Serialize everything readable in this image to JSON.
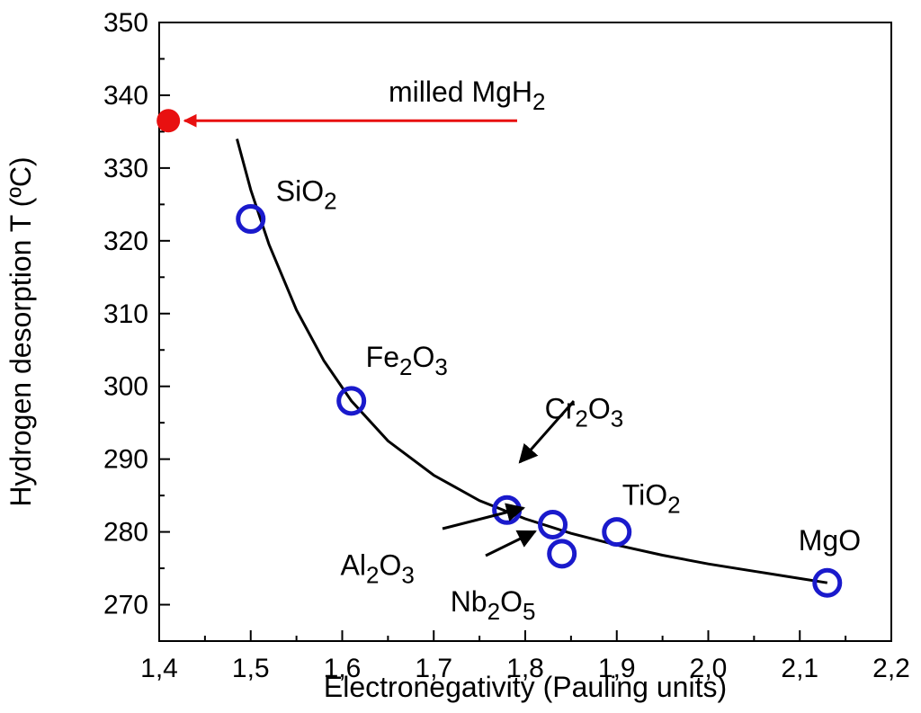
{
  "chart_data": {
    "type": "scatter",
    "xlabel": "Electronegativity (Pauling units)",
    "ylabel": "Hydrogen desorption T (ºC)",
    "xlim": [
      1.4,
      2.2
    ],
    "ylim": [
      265,
      350
    ],
    "x_ticks": [
      1.4,
      1.5,
      1.6,
      1.7,
      1.8,
      1.9,
      2.0,
      2.1,
      2.2
    ],
    "x_tick_labels": [
      "1,4",
      "1,5",
      "1,6",
      "1,7",
      "1,8",
      "1,9",
      "2,0",
      "2,1",
      "2,2"
    ],
    "y_ticks": [
      270,
      280,
      290,
      300,
      310,
      320,
      330,
      340,
      350
    ],
    "y_tick_labels": [
      "270",
      "280",
      "290",
      "300",
      "310",
      "320",
      "330",
      "340",
      "350"
    ],
    "grid": false,
    "marker_color": "#1a1acc",
    "reference_color": "#e81010",
    "curve_color": "#000000",
    "points": [
      {
        "x": 1.5,
        "y": 323,
        "label": [
          {
            "t": "SiO"
          },
          {
            "t": "2",
            "sub": true
          }
        ]
      },
      {
        "x": 1.61,
        "y": 298,
        "label": [
          {
            "t": "Fe"
          },
          {
            "t": "2",
            "sub": true
          },
          {
            "t": "O"
          },
          {
            "t": "3",
            "sub": true
          }
        ]
      },
      {
        "x": 1.78,
        "y": 283,
        "label": [
          {
            "t": "Cr"
          },
          {
            "t": "2",
            "sub": true
          },
          {
            "t": "O"
          },
          {
            "t": "3",
            "sub": true
          }
        ]
      },
      {
        "x": 1.83,
        "y": 281,
        "label": [
          {
            "t": "Al"
          },
          {
            "t": "2",
            "sub": true
          },
          {
            "t": "O"
          },
          {
            "t": "3",
            "sub": true
          }
        ]
      },
      {
        "x": 1.84,
        "y": 277,
        "label": [
          {
            "t": "Nb"
          },
          {
            "t": "2",
            "sub": true
          },
          {
            "t": "O"
          },
          {
            "t": "5",
            "sub": true
          }
        ]
      },
      {
        "x": 1.9,
        "y": 280,
        "label": [
          {
            "t": "TiO"
          },
          {
            "t": "2",
            "sub": true
          }
        ]
      },
      {
        "x": 2.13,
        "y": 273,
        "label": [
          {
            "t": "MgO"
          }
        ]
      }
    ],
    "reference": {
      "x": 1.41,
      "y": 336.5,
      "label": [
        {
          "t": "milled MgH"
        },
        {
          "t": "2",
          "sub": true
        }
      ]
    },
    "fit_curve": {
      "x": [
        1.485,
        1.5,
        1.52,
        1.55,
        1.58,
        1.61,
        1.65,
        1.7,
        1.75,
        1.8,
        1.85,
        1.9,
        1.95,
        2.0,
        2.05,
        2.1,
        2.13
      ],
      "y": [
        334,
        327,
        319.5,
        310.5,
        303.5,
        298,
        292.5,
        287.8,
        284.3,
        281.8,
        279.8,
        278.2,
        276.8,
        275.6,
        274.6,
        273.6,
        273
      ]
    }
  }
}
